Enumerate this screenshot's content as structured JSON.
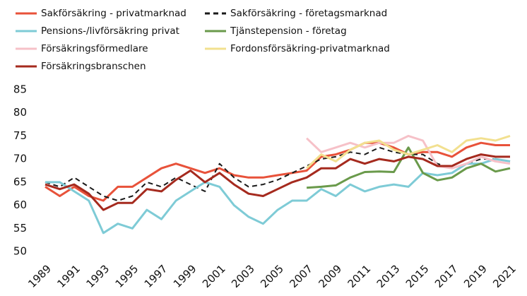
{
  "chart_data": {
    "type": "line",
    "x": [
      1989,
      1990,
      1991,
      1992,
      1993,
      1994,
      1995,
      1996,
      1997,
      1998,
      1999,
      2000,
      2001,
      2002,
      2003,
      2004,
      2005,
      2006,
      2007,
      2008,
      2009,
      2010,
      2011,
      2012,
      2013,
      2014,
      2015,
      2016,
      2017,
      2018,
      2019,
      2020,
      2021
    ],
    "xlim": [
      1989,
      2021
    ],
    "xticks": [
      1989,
      1991,
      1993,
      1995,
      1997,
      1999,
      2001,
      2003,
      2005,
      2007,
      2009,
      2011,
      2013,
      2015,
      2017,
      2019,
      2021
    ],
    "ylim": [
      50,
      85
    ],
    "yticks": [
      50,
      55,
      60,
      65,
      70,
      75,
      80,
      85
    ],
    "grid": false,
    "legend": "top",
    "series": [
      {
        "name": "Sakförsäkring - privatmarknad",
        "color": "#e8523a",
        "dashed": false,
        "values": [
          64,
          62,
          64,
          62,
          61,
          64,
          64,
          66,
          68,
          69,
          68,
          67,
          68,
          66.5,
          66,
          66,
          66.5,
          67,
          67.5,
          70.5,
          71,
          72,
          73.5,
          73.5,
          72.5,
          71,
          71.5,
          71.5,
          70.5,
          72.5,
          73.5,
          73,
          73
        ]
      },
      {
        "name": "Sakförsäkring - företagsmarknad",
        "color": "#1a1a1a",
        "dashed": true,
        "values": [
          65,
          64,
          66,
          64,
          62,
          61,
          62,
          65,
          64,
          66,
          64.5,
          63,
          69,
          66,
          64,
          64.5,
          65.5,
          67,
          68.5,
          70,
          70.5,
          71.5,
          71,
          72.5,
          71.5,
          71,
          71,
          69,
          68,
          69,
          70,
          70,
          69.5
        ]
      },
      {
        "name": "Pensions-/livförsäkring privat",
        "color": "#7ecbd6",
        "dashed": false,
        "values": [
          65,
          65,
          63,
          61,
          54,
          56,
          55,
          59,
          57,
          61,
          63,
          65,
          64,
          60,
          57.5,
          56,
          59,
          61,
          61,
          63.5,
          62,
          64.5,
          63,
          64,
          64.5,
          64,
          67,
          66.5,
          67,
          69,
          69,
          70,
          69.5
        ]
      },
      {
        "name": "Tjänstepension - företag",
        "color": "#6a9a4b",
        "dashed": false,
        "values": [
          null,
          null,
          null,
          null,
          null,
          null,
          null,
          null,
          null,
          null,
          null,
          null,
          null,
          null,
          null,
          null,
          null,
          null,
          63.8,
          64,
          64.3,
          66,
          67.2,
          67.3,
          67.2,
          72.5,
          67,
          65.4,
          66,
          68,
          69,
          67.3,
          68
        ]
      },
      {
        "name": "Försäkringsförmedlare",
        "color": "#f6c1c8",
        "dashed": false,
        "values": [
          null,
          null,
          null,
          null,
          null,
          null,
          null,
          null,
          null,
          null,
          null,
          null,
          null,
          null,
          null,
          null,
          null,
          null,
          74.5,
          71.5,
          72.5,
          73.5,
          72.5,
          73.5,
          73.5,
          75,
          74,
          68.5,
          68,
          69,
          70.5,
          69.5,
          69
        ]
      },
      {
        "name": "Fordonsförsäkring-privatmarknad",
        "color": "#f2e08f",
        "dashed": false,
        "values": [
          null,
          null,
          null,
          null,
          null,
          null,
          null,
          null,
          null,
          null,
          null,
          null,
          null,
          null,
          null,
          null,
          null,
          null,
          68,
          71,
          69.5,
          72,
          73.5,
          74,
          72,
          71,
          72,
          73,
          71.5,
          74,
          74.5,
          74,
          75
        ]
      },
      {
        "name": "Försäkringsbranschen",
        "color": "#a52a1e",
        "dashed": false,
        "values": [
          64.5,
          63.5,
          64.5,
          62.5,
          59,
          60.5,
          60.5,
          63.5,
          63,
          65.5,
          67.5,
          65,
          67,
          64.5,
          62.5,
          62,
          63.5,
          65,
          66,
          68,
          68,
          70,
          69,
          70,
          69.5,
          70.5,
          70,
          68.5,
          68.5,
          70,
          71,
          70.5,
          70.5
        ]
      }
    ]
  }
}
